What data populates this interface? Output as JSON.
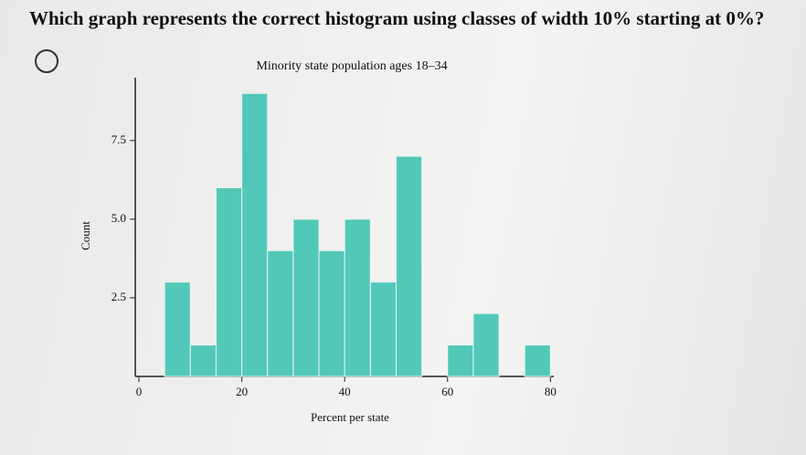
{
  "question": "Which graph represents the correct histogram using classes of width 10% starting at 0%?",
  "chart_data": {
    "type": "histogram",
    "title": "Minority state population ages 18–34",
    "x_label": "Percent per state",
    "y_label": "Count",
    "bins": [
      5,
      10,
      15,
      20,
      25,
      30,
      35,
      40,
      45,
      50,
      55,
      60,
      65,
      70,
      75,
      80
    ],
    "values": [
      3,
      1,
      6,
      9,
      4,
      5,
      4,
      5,
      3,
      7,
      0,
      1,
      2,
      0,
      1
    ],
    "color": "#52c8b8",
    "xlim": [
      0,
      81
    ],
    "xticks": [
      0,
      20,
      40,
      60,
      80
    ],
    "ylim": [
      0,
      9.5
    ],
    "yticks": [
      2.5,
      {
        "value": 5,
        "label": "5.0"
      },
      7.5
    ]
  }
}
